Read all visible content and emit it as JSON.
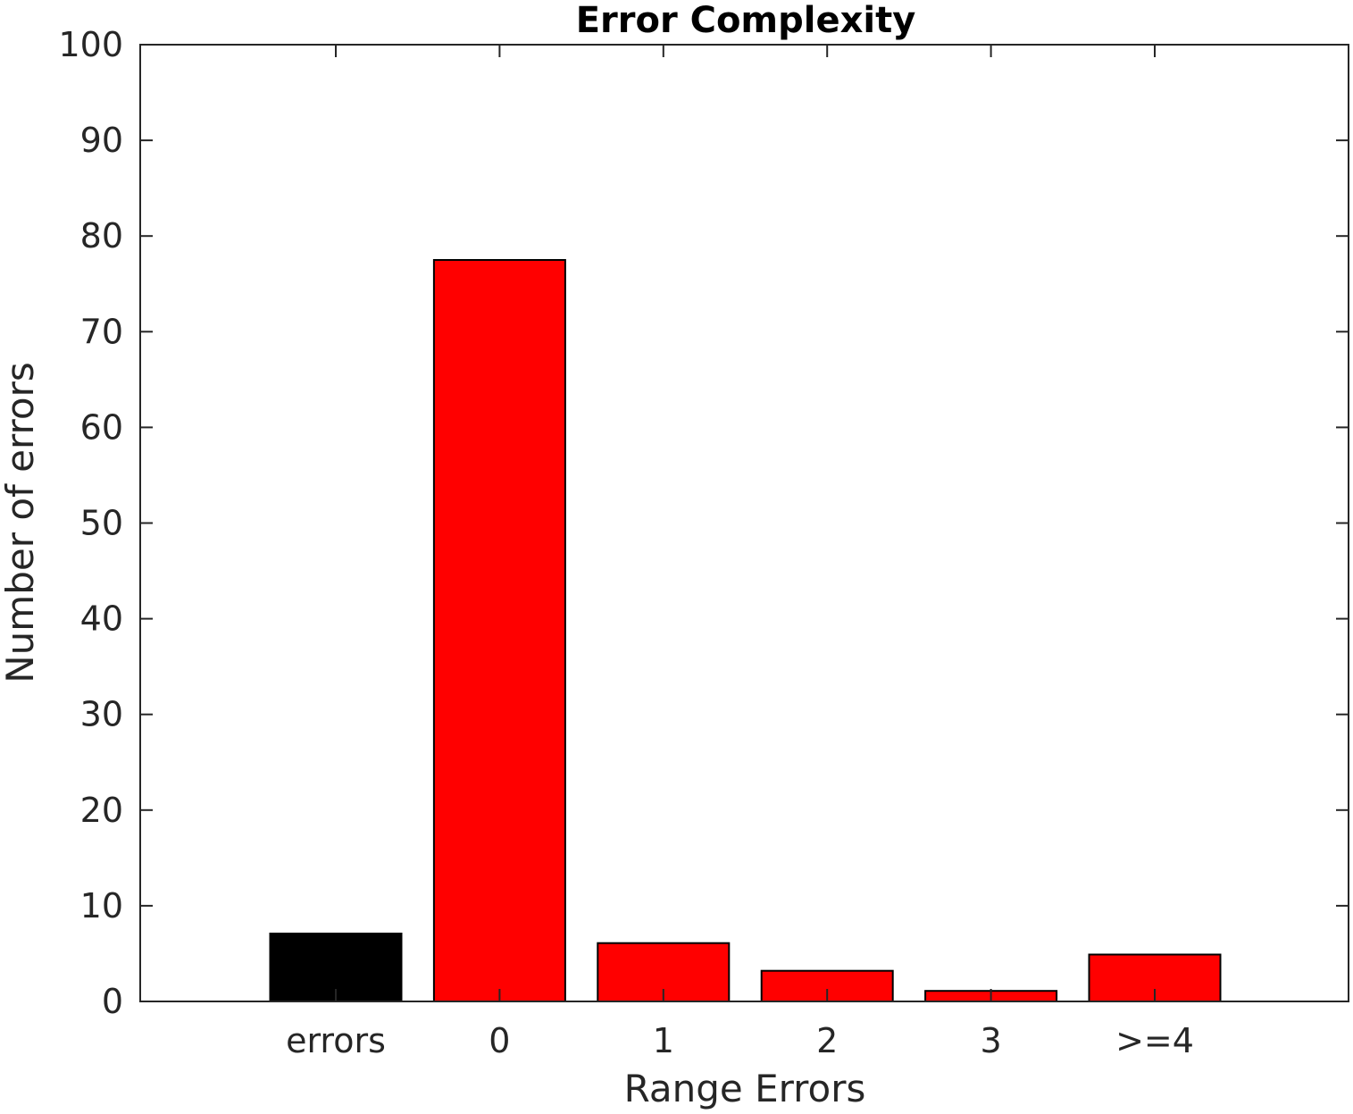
{
  "chart_data": {
    "type": "bar",
    "title": "Error Complexity",
    "xlabel": "Range Errors",
    "ylabel": "Number of errors",
    "categories": [
      "errors",
      "0",
      "1",
      "2",
      "3",
      ">=4"
    ],
    "values": [
      7.1,
      77.5,
      6.1,
      3.2,
      1.1,
      4.9
    ],
    "bar_colors": [
      "#000000",
      "#ff0000",
      "#ff0000",
      "#ff0000",
      "#ff0000",
      "#ff0000"
    ],
    "ylim": [
      0,
      100
    ],
    "yticks": [
      0,
      10,
      20,
      30,
      40,
      50,
      60,
      70,
      80,
      90,
      100
    ],
    "grid": false,
    "legend": "none"
  }
}
